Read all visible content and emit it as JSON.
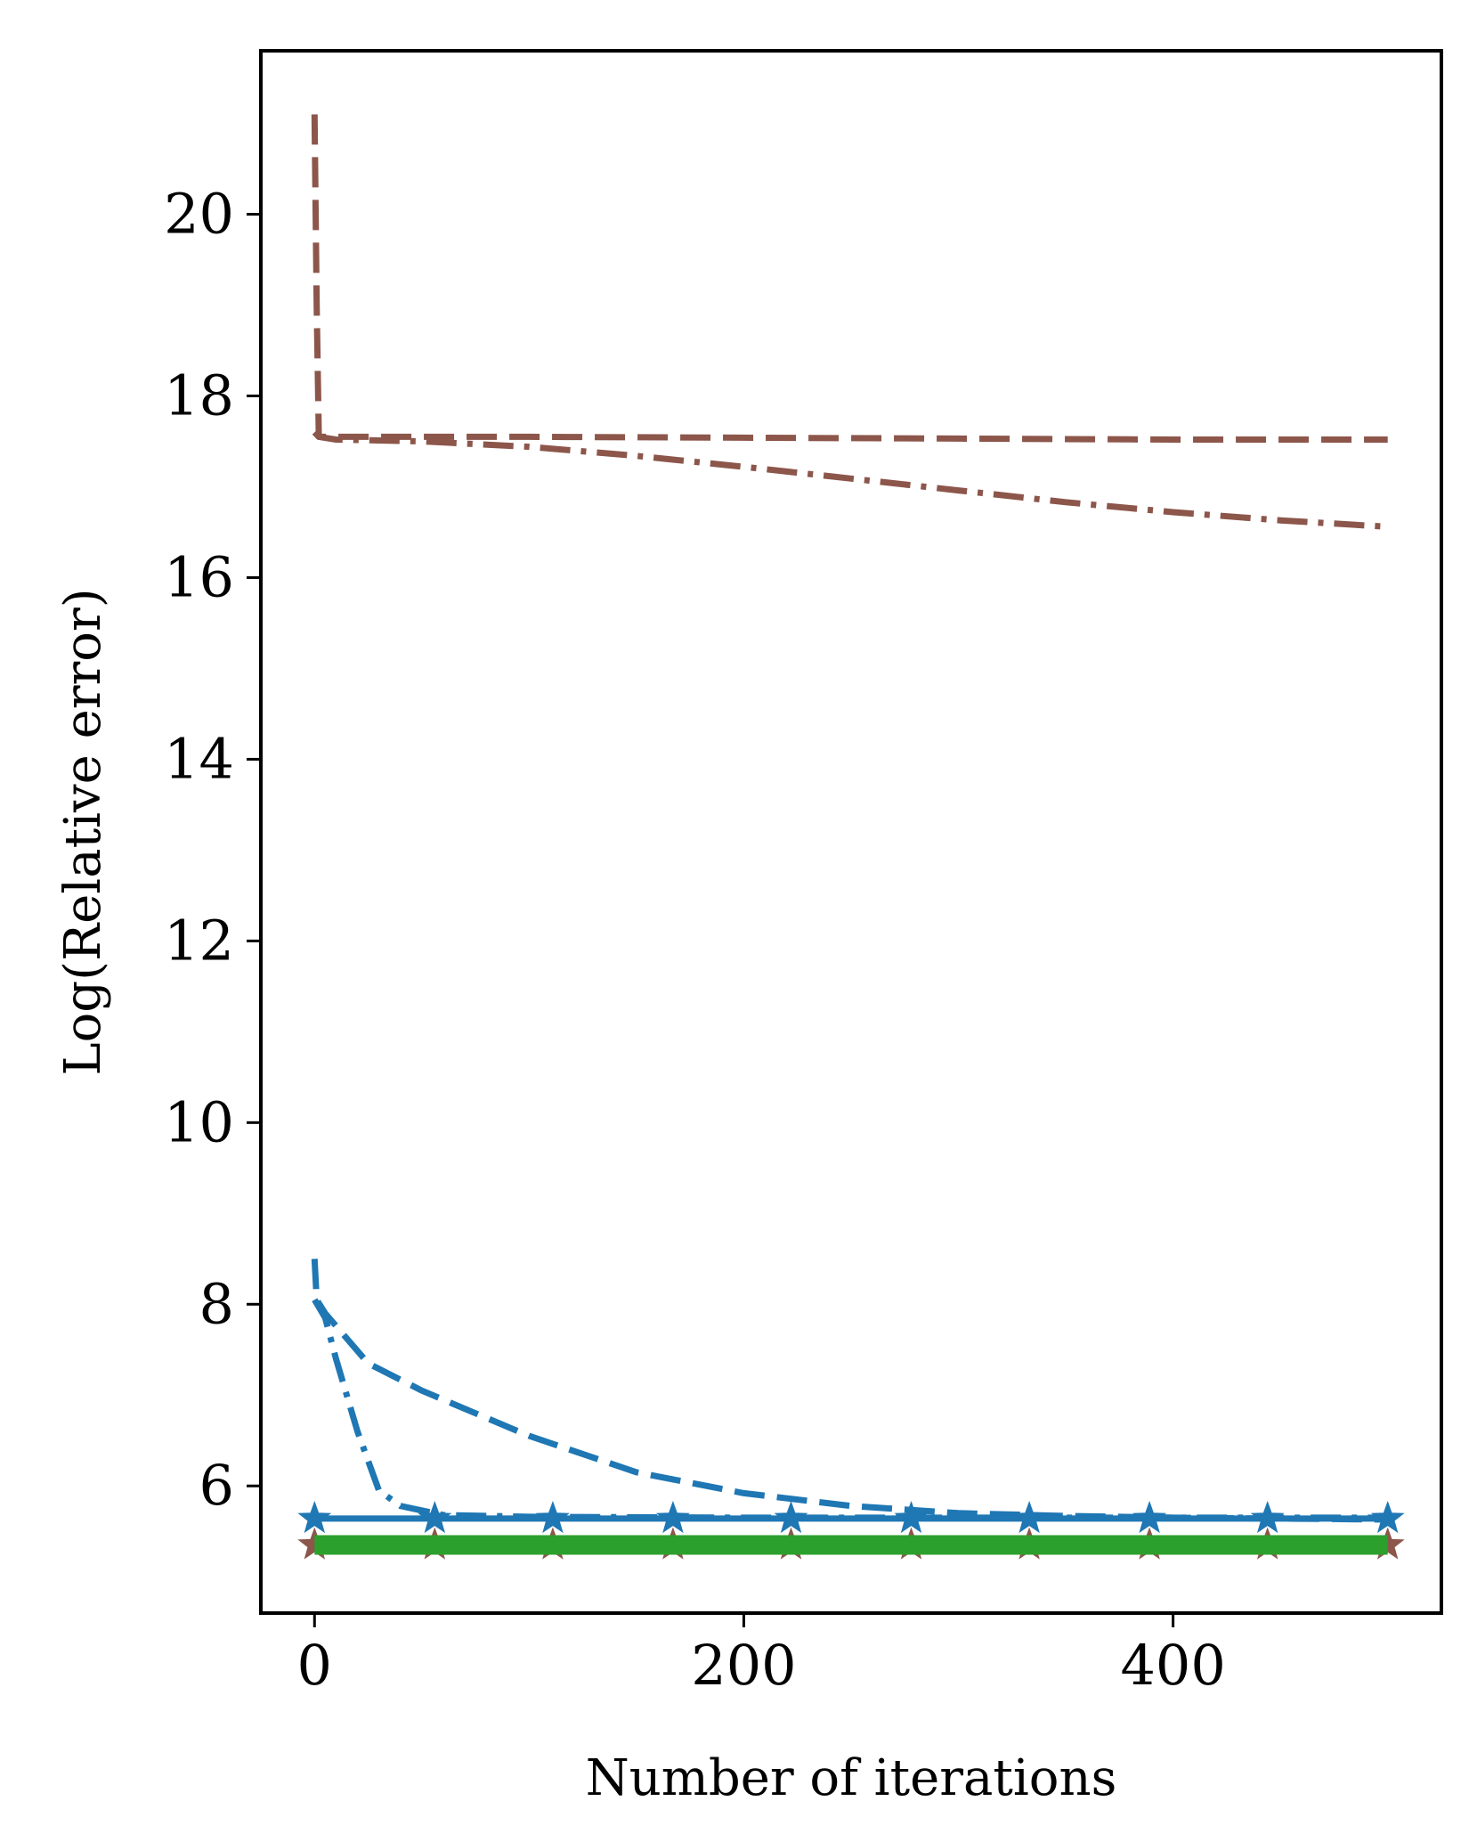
{
  "chart_data": {
    "type": "line",
    "title": "",
    "xlabel": "Number of iterations",
    "ylabel": "Log(Relative error)",
    "xlim": [
      -25,
      525
    ],
    "ylim": [
      4.6,
      21.8
    ],
    "xticks": [
      0,
      200,
      400
    ],
    "yticks": [
      6,
      8,
      10,
      12,
      14,
      16,
      18,
      20
    ],
    "grid": false,
    "legend": "none",
    "series": [
      {
        "color": "#8c564b",
        "style": "dashed",
        "x": [
          0,
          1,
          2,
          5,
          50,
          100,
          200,
          300,
          400,
          500
        ],
        "y": [
          21.1,
          19.0,
          17.55,
          17.55,
          17.55,
          17.55,
          17.54,
          17.53,
          17.52,
          17.52
        ]
      },
      {
        "color": "#8c564b",
        "style": "dashdot",
        "x": [
          0,
          2,
          10,
          50,
          100,
          150,
          200,
          250,
          300,
          350,
          400,
          450,
          500
        ],
        "y": [
          17.6,
          17.55,
          17.52,
          17.5,
          17.44,
          17.34,
          17.22,
          17.09,
          16.96,
          16.83,
          16.72,
          16.63,
          16.56
        ]
      },
      {
        "color": "#1f77b4",
        "style": "dashed",
        "x": [
          0,
          1,
          5,
          25,
          50,
          75,
          100,
          150,
          200,
          250,
          300,
          350,
          400,
          450,
          500
        ],
        "y": [
          8.5,
          8.05,
          7.9,
          7.35,
          7.05,
          6.8,
          6.55,
          6.15,
          5.92,
          5.78,
          5.7,
          5.67,
          5.65,
          5.64,
          5.63
        ]
      },
      {
        "color": "#1f77b4",
        "style": "dashdot",
        "x": [
          0,
          5,
          10,
          20,
          30,
          40,
          60,
          100,
          200,
          300,
          400,
          500
        ],
        "y": [
          8.05,
          7.85,
          7.4,
          6.6,
          5.95,
          5.78,
          5.68,
          5.66,
          5.65,
          5.65,
          5.65,
          5.65
        ]
      },
      {
        "color": "#1f77b4",
        "style": "solid",
        "marker": "star",
        "x": [
          0,
          56,
          111,
          167,
          222,
          278,
          333,
          389,
          444,
          500
        ],
        "y": [
          5.64,
          5.64,
          5.64,
          5.64,
          5.64,
          5.64,
          5.64,
          5.64,
          5.64,
          5.64
        ]
      },
      {
        "color": "#8c564b",
        "style": "solid",
        "marker": "star",
        "x": [
          0,
          56,
          111,
          167,
          222,
          278,
          333,
          389,
          444,
          500
        ],
        "y": [
          5.35,
          5.35,
          5.35,
          5.35,
          5.35,
          5.35,
          5.35,
          5.35,
          5.35,
          5.35
        ]
      },
      {
        "color": "#2ca02c",
        "style": "solid",
        "width": "thick",
        "x": [
          0,
          500
        ],
        "y": [
          5.35,
          5.35
        ]
      }
    ]
  }
}
